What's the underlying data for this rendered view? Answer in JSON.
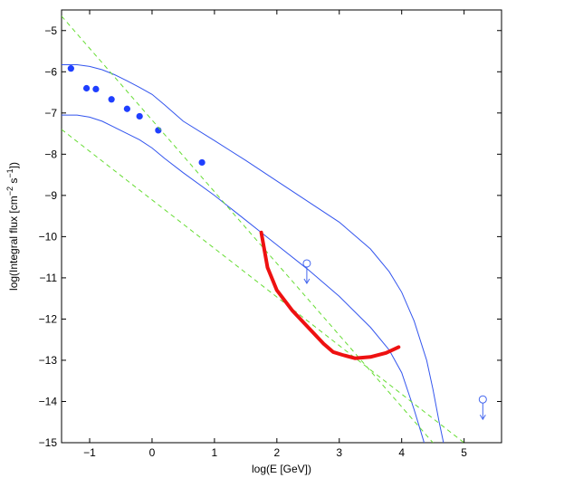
{
  "chart_data": {
    "type": "line",
    "xlabel_main": "log(E [GeV])",
    "ylabel": {
      "prefix": "log(Integral flux [cm",
      "exp1": "−2",
      "mid": " s",
      "exp2": "−1",
      "suffix": "])"
    },
    "xlim": [
      -1.45,
      5.6
    ],
    "ylim": [
      -15,
      -4.5
    ],
    "x_ticks": [
      -1,
      0,
      1,
      2,
      3,
      4,
      5
    ],
    "x_tick_labels": [
      "−1",
      "0",
      "1",
      "2",
      "3",
      "4",
      "5"
    ],
    "y_ticks": [
      -5,
      -6,
      -7,
      -8,
      -9,
      -10,
      -11,
      -12,
      -13,
      -14,
      -15
    ],
    "y_tick_labels": [
      "−5",
      "−6",
      "−7",
      "−8",
      "−9",
      "−10",
      "−11",
      "−12",
      "−13",
      "−14",
      "−15"
    ],
    "grid": false,
    "colors": {
      "points": "#1f3fff",
      "model_lines": "#3355ee",
      "dashed_lines": "#66dd33",
      "sensitivity": "#ee1111",
      "upper_limits": "#4466ee"
    },
    "series": [
      {
        "style": "scatter",
        "color_key": "points",
        "x": [
          -1.3,
          -1.05,
          -0.9,
          -0.65,
          -0.4,
          -0.2,
          0.1,
          0.8
        ],
        "y": [
          -5.92,
          -6.4,
          -6.42,
          -6.67,
          -6.9,
          -7.08,
          -7.42,
          -8.2
        ]
      },
      {
        "style": "line",
        "color_key": "model_lines",
        "x": [
          -1.45,
          -1.2,
          -1.0,
          -0.8,
          -0.6,
          -0.4,
          -0.2,
          0.0,
          0.2,
          0.5,
          1.0,
          1.5,
          2.0,
          2.5,
          3.0,
          3.5,
          3.8,
          4.0,
          4.2,
          4.4,
          4.5,
          4.6,
          4.67
        ],
        "y": [
          -5.83,
          -5.83,
          -5.87,
          -5.95,
          -6.07,
          -6.22,
          -6.38,
          -6.55,
          -6.8,
          -7.2,
          -7.67,
          -8.15,
          -8.65,
          -9.15,
          -9.65,
          -10.3,
          -10.85,
          -11.35,
          -12.05,
          -13.0,
          -13.7,
          -14.5,
          -15.0
        ]
      },
      {
        "style": "line",
        "color_key": "model_lines",
        "x": [
          -1.45,
          -1.2,
          -1.0,
          -0.8,
          -0.6,
          -0.4,
          -0.2,
          0.0,
          0.2,
          0.5,
          1.0,
          1.5,
          2.0,
          2.5,
          3.0,
          3.5,
          3.8,
          4.0,
          4.1,
          4.2,
          4.3,
          4.36
        ],
        "y": [
          -7.05,
          -7.05,
          -7.1,
          -7.2,
          -7.35,
          -7.5,
          -7.65,
          -7.85,
          -8.1,
          -8.45,
          -9.0,
          -9.6,
          -10.2,
          -10.8,
          -11.45,
          -12.2,
          -12.75,
          -13.3,
          -13.75,
          -14.2,
          -14.7,
          -15.0
        ]
      },
      {
        "style": "dashed",
        "color_key": "dashed_lines",
        "x": [
          -1.45,
          4.5
        ],
        "y": [
          -4.65,
          -15.0
        ]
      },
      {
        "style": "dashed",
        "color_key": "dashed_lines",
        "x": [
          -1.45,
          5.0
        ],
        "y": [
          -7.4,
          -15.0
        ]
      },
      {
        "style": "thick",
        "color_key": "sensitivity",
        "x": [
          1.75,
          1.85,
          2.0,
          2.25,
          2.5,
          2.75,
          2.9,
          3.05,
          3.25,
          3.5,
          3.75,
          3.95
        ],
        "y": [
          -9.9,
          -10.75,
          -11.3,
          -11.8,
          -12.2,
          -12.6,
          -12.8,
          -12.87,
          -12.95,
          -12.92,
          -12.82,
          -12.68
        ]
      }
    ],
    "upper_limits": [
      {
        "x": 2.48,
        "y": -10.65
      },
      {
        "x": 5.3,
        "y": -13.95
      }
    ]
  }
}
